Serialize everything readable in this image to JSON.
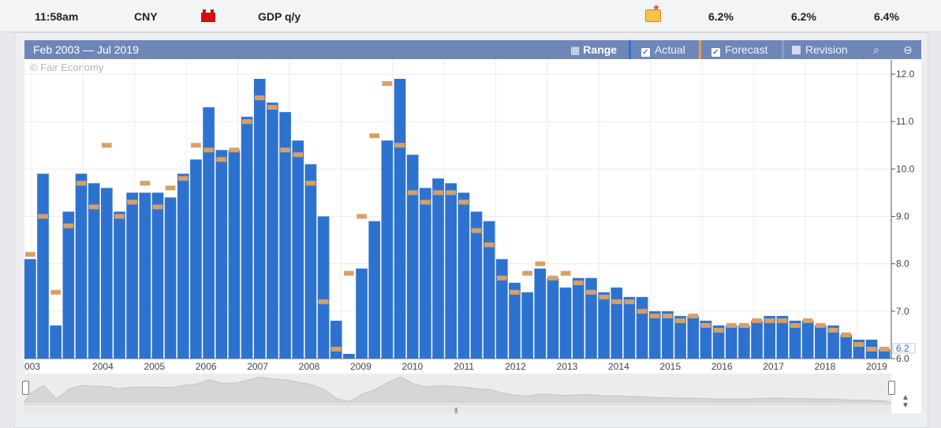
{
  "event_row": {
    "time": "11:58am",
    "currency": "CNY",
    "event": "GDP q/y",
    "actual": "6.2%",
    "forecast": "6.2%",
    "previous": "6.4%"
  },
  "chart_header": {
    "range_text": "Feb 2003 — Jul 2019",
    "range_button": "Range",
    "actual_label": "Actual",
    "forecast_label": "Forecast",
    "revision_label": "Revision",
    "actual_checked": true,
    "forecast_checked": true,
    "revision_checked": false
  },
  "copyright": "© Fair Economy",
  "colors": {
    "actual": "#2e72cf",
    "forecast": "#d9a066",
    "header": "#6f87b8",
    "last_value": "#2e72cf"
  },
  "chart_data": {
    "type": "bar",
    "ylim": [
      6.0,
      12.3
    ],
    "yticks": [
      "12.0",
      "11.0",
      "10.0",
      "9.0",
      "8.0",
      "7.0",
      "6.0"
    ],
    "ytick_values": [
      12,
      11,
      10,
      9,
      8,
      7,
      6
    ],
    "last_value_label": "6.2",
    "x_year_labels": [
      "003",
      "2004",
      "2005",
      "2006",
      "2007",
      "2008",
      "2009",
      "2010",
      "2011",
      "2012",
      "2013",
      "2014",
      "2015",
      "2016",
      "2017",
      "2018",
      "2019"
    ],
    "series": [
      {
        "name": "Actual",
        "values": [
          8.1,
          9.9,
          6.7,
          9.1,
          9.9,
          9.7,
          9.6,
          9.1,
          9.5,
          9.5,
          9.5,
          9.4,
          9.9,
          10.2,
          11.3,
          10.4,
          10.4,
          11.1,
          11.9,
          11.4,
          11.2,
          10.6,
          10.1,
          9.0,
          6.8,
          6.1,
          7.9,
          8.9,
          10.6,
          11.9,
          10.3,
          9.6,
          9.8,
          9.7,
          9.5,
          9.1,
          8.9,
          8.1,
          7.6,
          7.4,
          7.9,
          7.7,
          7.5,
          7.7,
          7.7,
          7.4,
          7.5,
          7.3,
          7.3,
          7.0,
          7.0,
          6.9,
          6.9,
          6.8,
          6.7,
          6.7,
          6.7,
          6.8,
          6.9,
          6.9,
          6.8,
          6.8,
          6.7,
          6.7,
          6.5,
          6.4,
          6.4,
          6.2
        ]
      },
      {
        "name": "Forecast",
        "values": [
          8.2,
          9.0,
          7.4,
          8.8,
          9.7,
          9.2,
          10.5,
          9.0,
          9.3,
          9.7,
          9.2,
          9.6,
          9.8,
          10.5,
          10.4,
          10.2,
          10.4,
          11.0,
          11.5,
          11.3,
          10.4,
          10.3,
          9.7,
          7.2,
          6.2,
          7.8,
          9.0,
          10.7,
          11.8,
          10.5,
          9.5,
          9.3,
          9.5,
          9.5,
          9.3,
          8.7,
          8.4,
          7.7,
          7.4,
          7.8,
          8.0,
          7.7,
          7.8,
          7.6,
          7.4,
          7.3,
          7.2,
          7.2,
          7.0,
          6.9,
          6.9,
          6.8,
          6.9,
          6.7,
          6.6,
          6.7,
          6.7,
          6.8,
          6.8,
          6.8,
          6.7,
          6.8,
          6.7,
          6.6,
          6.5,
          6.3,
          6.2,
          6.2
        ]
      }
    ]
  }
}
